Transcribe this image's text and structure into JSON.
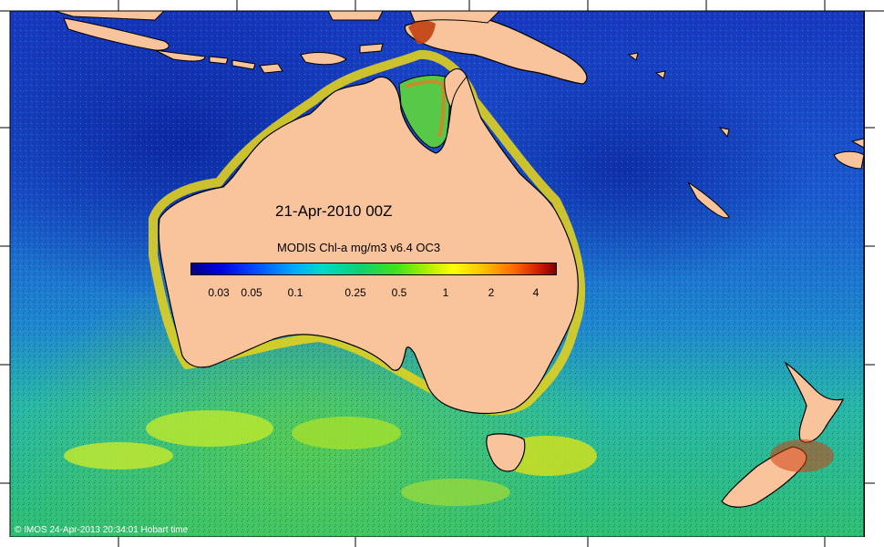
{
  "map": {
    "date_label": "21-Apr-2010 00Z",
    "colorbar": {
      "title": "MODIS Chl-a mg/m3 v6.4 OC3",
      "ticks": [
        "0.03",
        "0.05",
        "0.1",
        "0.25",
        "0.5",
        "1",
        "2",
        "4"
      ],
      "colors": [
        "#00007f",
        "#0050ff",
        "#00d8c8",
        "#40e020",
        "#ffff00",
        "#ff7000",
        "#800000"
      ]
    },
    "credit": "© IMOS 24-Apr-2013 20:34:01 Hobart time",
    "land_color": "#f9c49b",
    "ocean_colors": [
      "#1840c8",
      "#1a70d8",
      "#20b0c0",
      "#40c060"
    ],
    "regions": [
      "Australia",
      "Tasmania",
      "New Zealand",
      "New Guinea",
      "Indonesia",
      "New Caledonia"
    ]
  }
}
